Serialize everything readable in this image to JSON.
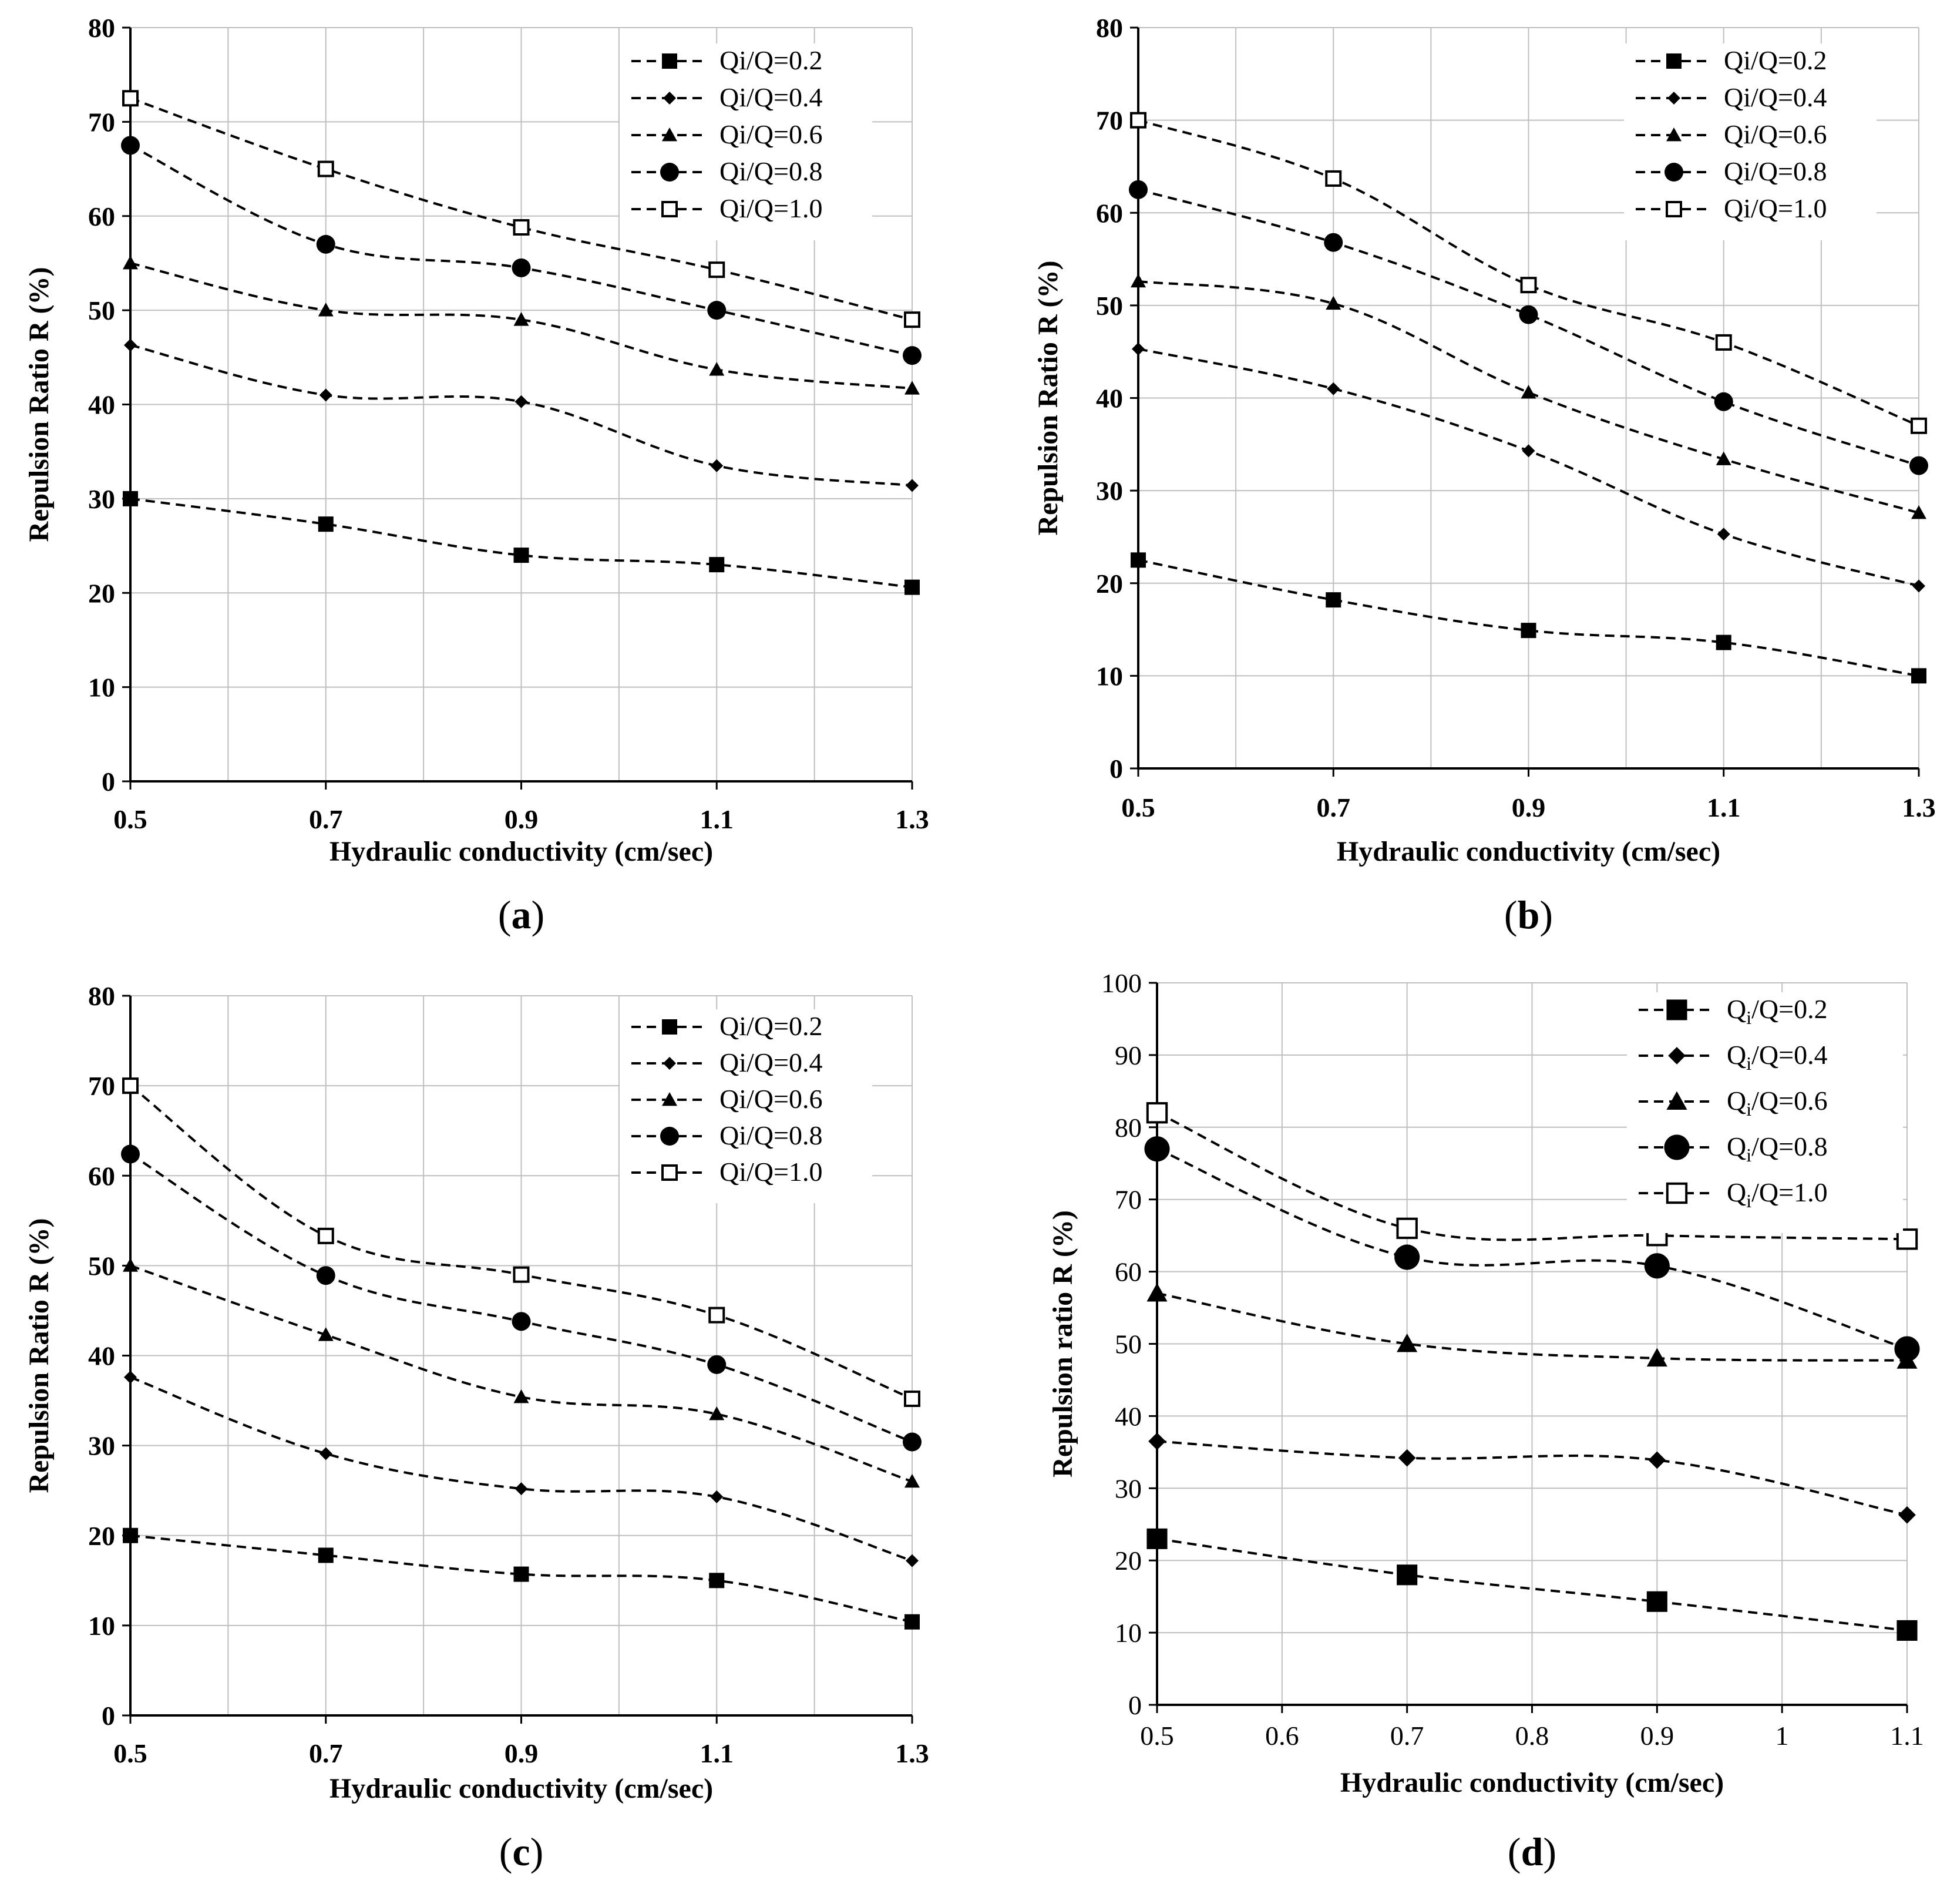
{
  "chart_data": [
    {
      "type": "line",
      "caption": "a",
      "xlabel": "Hydraulic conductivity (cm/sec)",
      "ylabel": "Repulsion Ratio R (%)",
      "x": [
        0.5,
        0.7,
        0.9,
        1.1,
        1.3
      ],
      "xlim": [
        0.5,
        1.3
      ],
      "ylim": [
        0,
        80
      ],
      "xticks": [
        "0.5",
        "0.7",
        "0.9",
        "1.1",
        "1.3"
      ],
      "yticks": [
        "0",
        "10",
        "20",
        "30",
        "40",
        "50",
        "60",
        "70",
        "80"
      ],
      "grid": true,
      "legend_position": "top-right",
      "series": [
        {
          "name": "Qi/Q=0.2",
          "marker": "square",
          "values": [
            30,
            27.3,
            24,
            23,
            20.6
          ]
        },
        {
          "name": "Qi/Q=0.4",
          "marker": "diamond",
          "values": [
            46.3,
            41,
            40.3,
            33.5,
            31.4
          ]
        },
        {
          "name": "Qi/Q=0.6",
          "marker": "triangle",
          "values": [
            55,
            50,
            49,
            43.7,
            41.7
          ]
        },
        {
          "name": "Qi/Q=0.8",
          "marker": "circle",
          "values": [
            67.5,
            57,
            54.5,
            50,
            45.2
          ]
        },
        {
          "name": "Qi/Q=1.0",
          "marker": "open-square",
          "values": [
            72.5,
            65,
            58.8,
            54.3,
            49
          ]
        }
      ]
    },
    {
      "type": "line",
      "caption": "b",
      "xlabel": "Hydraulic conductivity (cm/sec)",
      "ylabel": "Repulsion Ratio R (%)",
      "x": [
        0.5,
        0.7,
        0.9,
        1.1,
        1.3
      ],
      "xlim": [
        0.5,
        1.3
      ],
      "ylim": [
        0,
        80
      ],
      "xticks": [
        "0.5",
        "0.7",
        "0.9",
        "1.1",
        "1.3"
      ],
      "yticks": [
        "0",
        "10",
        "20",
        "30",
        "40",
        "50",
        "60",
        "70",
        "80"
      ],
      "grid": true,
      "legend_position": "top-right",
      "series": [
        {
          "name": "Qi/Q=0.2",
          "marker": "square",
          "values": [
            22.5,
            18.2,
            14.9,
            13.6,
            10
          ]
        },
        {
          "name": "Qi/Q=0.4",
          "marker": "diamond",
          "values": [
            45.3,
            41,
            34.3,
            25.3,
            19.7
          ]
        },
        {
          "name": "Qi/Q=0.6",
          "marker": "triangle",
          "values": [
            52.6,
            50.2,
            40.6,
            33.4,
            27.6
          ]
        },
        {
          "name": "Qi/Q=0.8",
          "marker": "circle",
          "values": [
            62.5,
            56.8,
            49,
            39.6,
            32.7
          ]
        },
        {
          "name": "Qi/Q=1.0",
          "marker": "open-square",
          "values": [
            70,
            63.7,
            52.2,
            46,
            37
          ]
        }
      ]
    },
    {
      "type": "line",
      "caption": "c",
      "xlabel": "Hydraulic conductivity (cm/sec)",
      "ylabel": "Repulsion Ratio R (%)",
      "x": [
        0.5,
        0.7,
        0.9,
        1.1,
        1.3
      ],
      "xlim": [
        0.5,
        1.3
      ],
      "ylim": [
        0,
        80
      ],
      "xticks": [
        "0.5",
        "0.7",
        "0.9",
        "1.1",
        "1.3"
      ],
      "yticks": [
        "0",
        "10",
        "20",
        "30",
        "40",
        "50",
        "60",
        "70",
        "80"
      ],
      "grid": true,
      "legend_position": "top-right",
      "series": [
        {
          "name": "Qi/Q=0.2",
          "marker": "square",
          "values": [
            20,
            17.8,
            15.7,
            15,
            10.4
          ]
        },
        {
          "name": "Qi/Q=0.4",
          "marker": "diamond",
          "values": [
            37.6,
            29.1,
            25.2,
            24.3,
            17.2
          ]
        },
        {
          "name": "Qi/Q=0.6",
          "marker": "triangle",
          "values": [
            50,
            42.3,
            35.4,
            33.5,
            26
          ]
        },
        {
          "name": "Qi/Q=0.8",
          "marker": "circle",
          "values": [
            62.4,
            48.9,
            43.8,
            39,
            30.4
          ]
        },
        {
          "name": "Qi/Q=1.0",
          "marker": "open-square",
          "values": [
            70,
            53.3,
            49,
            44.5,
            35.2
          ]
        }
      ]
    },
    {
      "type": "line",
      "caption": "d",
      "xlabel": "Hydraulic conductivity (cm/sec)",
      "ylabel": "Repulsion ratio R (%)",
      "x": [
        0.5,
        0.7,
        0.9,
        1.1
      ],
      "xlim": [
        0.5,
        1.1
      ],
      "ylim": [
        0,
        100
      ],
      "xticks": [
        "0.5",
        "0.6",
        "0.7",
        "0.8",
        "0.9",
        "1",
        "1.1"
      ],
      "yticks": [
        "0",
        "10",
        "20",
        "30",
        "40",
        "50",
        "60",
        "70",
        "80",
        "90",
        "100"
      ],
      "grid": true,
      "legend_position": "top-right",
      "series": [
        {
          "name": "Qi/Q=0.2",
          "marker": "square",
          "values": [
            23,
            18,
            14.3,
            10.3
          ]
        },
        {
          "name": "Qi/Q=0.4",
          "marker": "diamond",
          "values": [
            36.5,
            34.2,
            33.9,
            26.3
          ]
        },
        {
          "name": "Qi/Q=0.6",
          "marker": "triangle",
          "values": [
            57,
            50,
            48,
            47.7
          ]
        },
        {
          "name": "Qi/Q=0.8",
          "marker": "circle",
          "values": [
            77,
            62,
            60.8,
            49.3
          ]
        },
        {
          "name": "Qi/Q=1.0",
          "marker": "open-square",
          "values": [
            82,
            66,
            65,
            64.5
          ]
        }
      ]
    }
  ]
}
